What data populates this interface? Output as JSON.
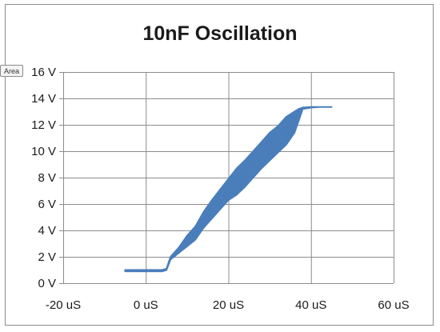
{
  "tooltip": {
    "label": "Area"
  },
  "chart_data": {
    "type": "line",
    "title": "10nF Oscillation",
    "xlabel": "",
    "ylabel": "",
    "x_unit": "uS",
    "y_unit": "V",
    "xlim": [
      -20,
      60
    ],
    "ylim": [
      0,
      16
    ],
    "x_ticks": [
      -20,
      0,
      20,
      40,
      60
    ],
    "y_ticks": [
      0,
      2,
      4,
      6,
      8,
      10,
      12,
      14,
      16
    ],
    "x_tick_labels": [
      "-20 uS",
      "0 uS",
      "20 uS",
      "40 uS",
      "60 uS"
    ],
    "y_tick_labels": [
      "0 V",
      "2 V",
      "4 V",
      "6 V",
      "8 V",
      "10 V",
      "12 V",
      "14 V",
      "16 V"
    ],
    "grid": {
      "horizontal": true,
      "vertical": true
    },
    "legend": "none",
    "series_color": "#4a7ebb",
    "series": [
      {
        "x": [
          -5,
          4,
          5,
          6,
          8,
          10,
          12,
          14,
          16,
          18,
          20,
          22,
          24,
          26,
          28,
          30,
          32,
          34,
          36,
          37,
          38,
          40,
          42,
          45
        ],
        "y_min": [
          0.9,
          0.9,
          1.0,
          1.8,
          2.3,
          2.8,
          3.3,
          4.2,
          4.9,
          5.6,
          6.3,
          6.7,
          7.3,
          8.0,
          8.7,
          9.3,
          9.9,
          10.5,
          11.4,
          12.3,
          13.2,
          13.3,
          13.35,
          13.35
        ],
        "y_max": [
          1.0,
          1.0,
          1.1,
          2.0,
          2.7,
          3.6,
          4.3,
          5.4,
          6.3,
          7.1,
          7.9,
          8.7,
          9.3,
          10.0,
          10.7,
          11.4,
          11.9,
          12.6,
          13.0,
          13.2,
          13.3,
          13.35,
          13.35,
          13.35
        ]
      }
    ]
  }
}
